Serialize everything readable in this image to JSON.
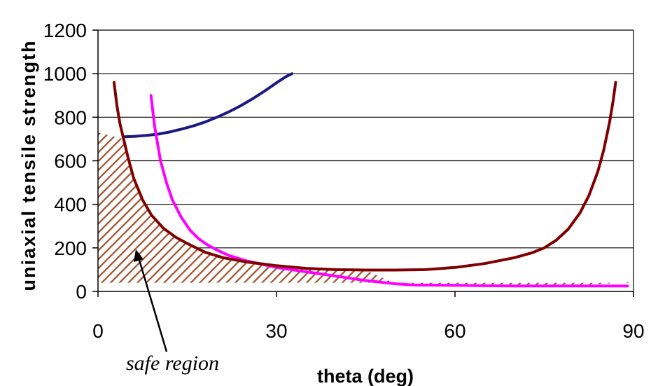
{
  "chart_data": {
    "type": "line",
    "title": "",
    "xlabel": "theta (deg)",
    "ylabel": "uniaxial tensile strength",
    "xlim": [
      0,
      90
    ],
    "ylim": [
      0,
      1200
    ],
    "x_ticks": [
      0,
      30,
      60,
      90
    ],
    "y_ticks": [
      0,
      200,
      400,
      600,
      800,
      1000,
      1200
    ],
    "grid": "horizontal",
    "colors": {
      "navy": "#1a1a80",
      "magenta": "#ff00ff",
      "maroon": "#800000",
      "hatch": "#a0522d"
    },
    "series": [
      {
        "name": "navy curve",
        "color": "#1a1a80",
        "x": [
          4.3,
          6,
          8,
          10,
          12,
          14,
          16,
          18,
          20,
          22,
          24,
          26,
          28,
          30,
          31.5,
          32.6
        ],
        "y": [
          710,
          712,
          716,
          722,
          732,
          745,
          760,
          778,
          800,
          825,
          853,
          885,
          920,
          958,
          985,
          1000
        ]
      },
      {
        "name": "magenta curve",
        "color": "#ff00ff",
        "x": [
          8.9,
          9.5,
          10.5,
          11.5,
          12.5,
          14,
          15.5,
          17,
          18.5,
          20,
          22,
          25,
          30,
          35,
          40,
          45,
          50,
          53,
          60,
          65,
          70,
          80,
          89
        ],
        "y": [
          900,
          760,
          600,
          500,
          420,
          340,
          280,
          240,
          212,
          190,
          165,
          140,
          110,
          90,
          70,
          50,
          35,
          30,
          28,
          26,
          25,
          25,
          25
        ]
      },
      {
        "name": "maroon curve",
        "color": "#800000",
        "x": [
          2.7,
          3.2,
          3.7,
          4.3,
          5,
          6,
          7.5,
          9,
          11,
          13,
          15,
          18,
          21,
          25,
          30,
          35,
          40,
          45,
          50,
          55,
          60,
          65,
          70,
          73,
          75,
          77,
          79,
          81,
          82.5,
          84,
          85,
          86,
          86.6,
          87
        ],
        "y": [
          960,
          850,
          770,
          700,
          620,
          520,
          420,
          350,
          290,
          250,
          220,
          180,
          155,
          135,
          118,
          106,
          100,
          98,
          98,
          100,
          110,
          128,
          155,
          178,
          200,
          235,
          285,
          360,
          440,
          550,
          650,
          780,
          880,
          960
        ]
      }
    ],
    "safe_region": {
      "label": "safe region",
      "x": [
        0,
        4.3,
        5,
        6,
        7.5,
        9,
        11,
        13,
        15,
        18,
        21,
        25,
        30,
        35,
        40,
        45,
        50,
        53,
        60,
        65,
        70,
        80,
        90
      ],
      "y_upper": [
        730,
        700,
        620,
        520,
        420,
        350,
        290,
        250,
        220,
        180,
        155,
        135,
        118,
        106,
        100,
        98,
        35,
        30,
        28,
        26,
        25,
        25,
        45
      ],
      "y_lower": 40
    }
  }
}
